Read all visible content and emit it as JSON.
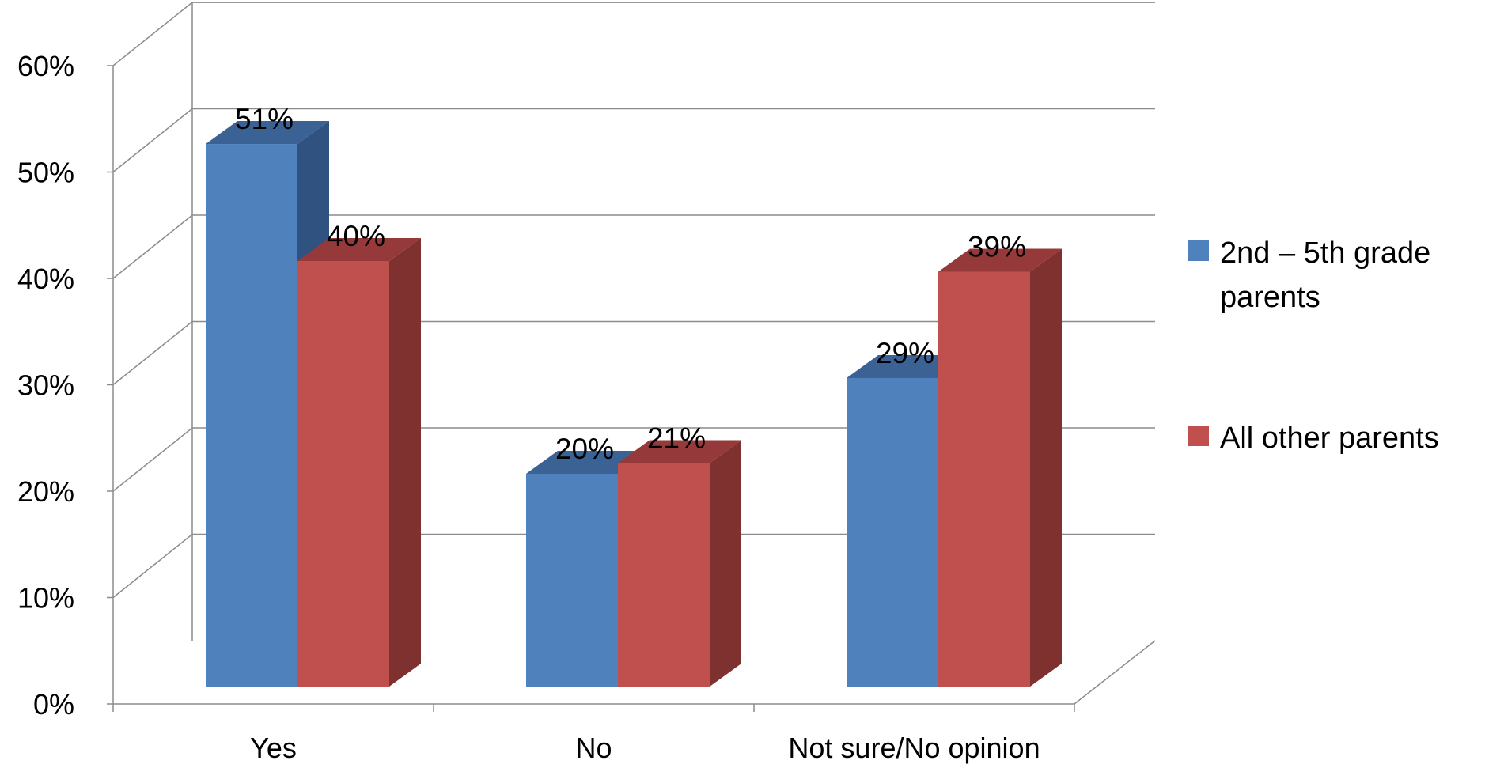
{
  "chart_data": {
    "type": "bar",
    "three_d": true,
    "title": "",
    "xlabel": "",
    "ylabel": "",
    "categories": [
      "Yes",
      "No",
      "Not sure/No opinion"
    ],
    "series": [
      {
        "name": "2nd – 5th grade parents",
        "name_lines": [
          "2nd – 5th grade",
          "parents"
        ],
        "color": "#4f81bd",
        "side_color": "#2f5280",
        "top_color": "#3b6294",
        "values": [
          51,
          20,
          29
        ],
        "labels": [
          "51%",
          "20%",
          "29%"
        ]
      },
      {
        "name": "All other parents",
        "name_lines": [
          "All other parents"
        ],
        "color": "#c0504d",
        "side_color": "#7f3130",
        "top_color": "#96393a",
        "values": [
          40,
          21,
          39
        ],
        "labels": [
          "40%",
          "21%",
          "39%"
        ]
      }
    ],
    "ylim": [
      0,
      60
    ],
    "yticks": [
      0,
      10,
      20,
      30,
      40,
      50,
      60
    ],
    "ytick_labels": [
      "0%",
      "10%",
      "20%",
      "30%",
      "40%",
      "50%",
      "60%"
    ],
    "grid": true,
    "legend_position": "right",
    "gridline_color": "#8c8c8c"
  }
}
